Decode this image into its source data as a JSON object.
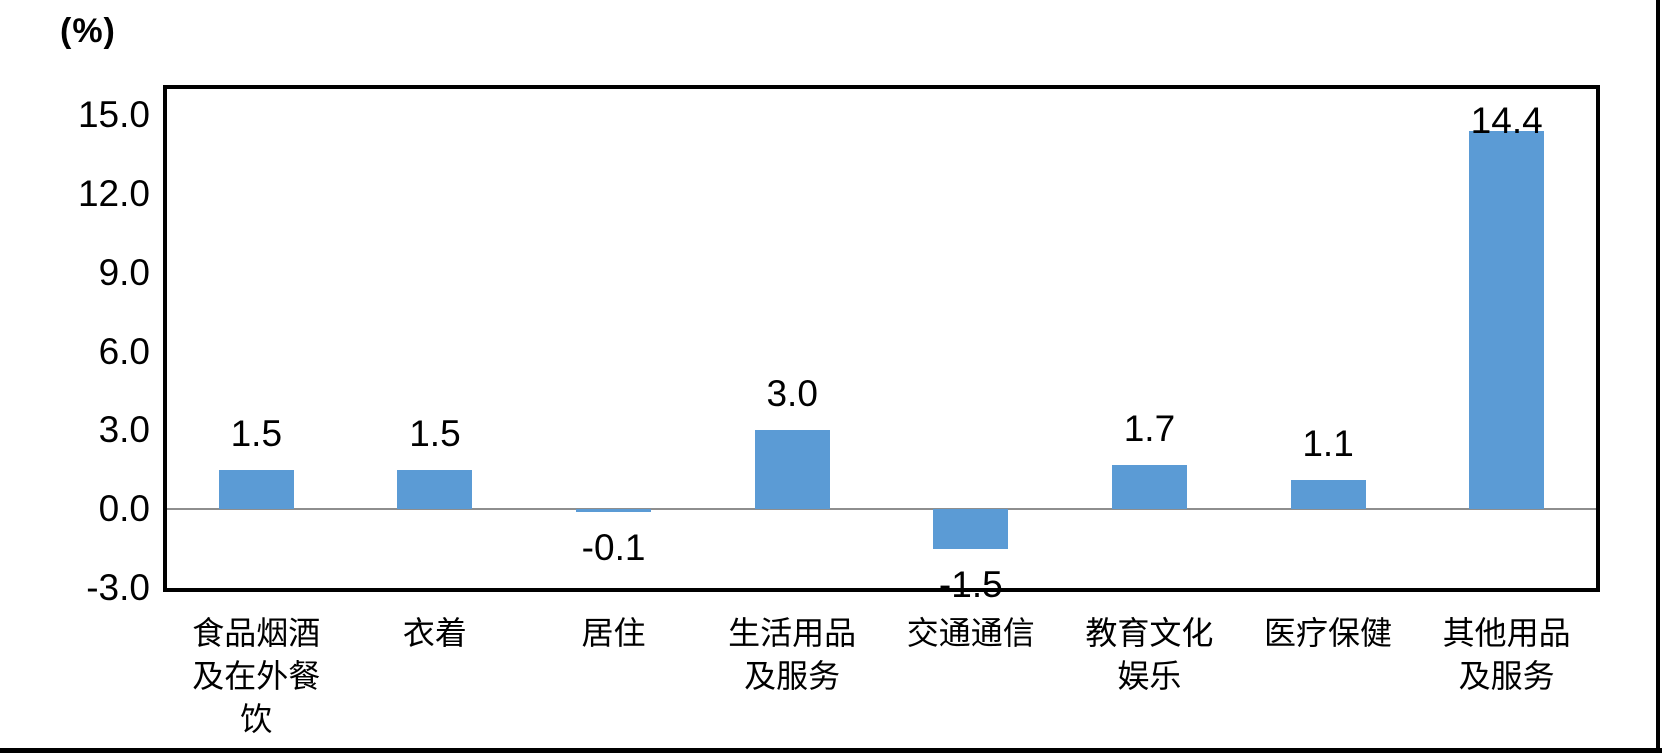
{
  "chart_data": {
    "type": "bar",
    "title": "",
    "unit_label": "(%)",
    "xlabel": "",
    "ylabel": "(%)",
    "categories": [
      "食品烟酒\n及在外餐\n饮",
      "衣着",
      "居住",
      "生活用品\n及服务",
      "交通通信",
      "教育文化\n娱乐",
      "医疗保健",
      "其他用品\n及服务"
    ],
    "values": [
      1.5,
      1.5,
      -0.1,
      3.0,
      -1.5,
      1.7,
      1.1,
      14.4
    ],
    "value_labels": [
      "1.5",
      "1.5",
      "-0.1",
      "3.0",
      "-1.5",
      "1.7",
      "1.1",
      "14.4"
    ],
    "y_ticks": [
      "15.0",
      "12.0",
      "9.0",
      "6.0",
      "3.0",
      "0.0",
      "-3.0"
    ],
    "y_tick_values": [
      15,
      12,
      9,
      6,
      3,
      0,
      -3
    ],
    "ylim": [
      -3,
      16
    ],
    "grid": false,
    "legend_position": "none",
    "bar_color": "#5B9BD5",
    "zero_line_color": "#8E8E8E",
    "plot_border_color": "#000000",
    "text_color": "#000000"
  }
}
